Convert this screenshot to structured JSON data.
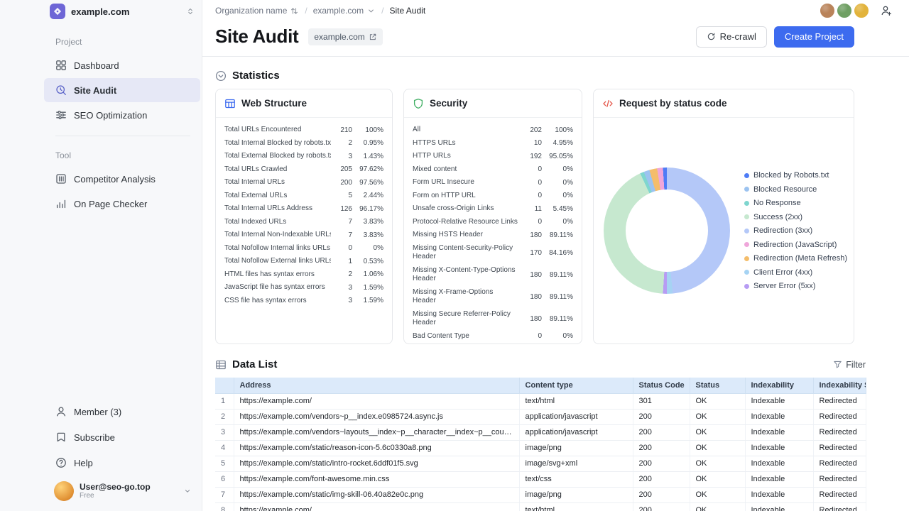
{
  "colors": {
    "primary": "#3d6bef",
    "logo_purple": "#6e66d6",
    "sidebar_bg": "#f7f8fa",
    "active_item_bg": "#e6e8f6",
    "active_icon": "#5a63c8",
    "table_header_bg": "#dceafa",
    "web_structure_icon": "#3d6bef",
    "security_icon": "#3fae62",
    "code_icon": "#e4574a"
  },
  "sidebar": {
    "workspace_name": "example.com",
    "sections": [
      {
        "label": "Project",
        "items": [
          {
            "label": "Dashboard",
            "icon": "dashboard-icon",
            "active": false
          },
          {
            "label": "Site Audit",
            "icon": "site-audit-icon",
            "active": true
          },
          {
            "label": "SEO Optimization",
            "icon": "seo-optimization-icon",
            "active": false
          }
        ]
      },
      {
        "label": "Tool",
        "items": [
          {
            "label": "Competitor Analysis",
            "icon": "competitor-analysis-icon",
            "active": false
          },
          {
            "label": "On Page Checker",
            "icon": "on-page-checker-icon",
            "active": false
          }
        ]
      }
    ],
    "footer_items": [
      {
        "label": "Member (3)",
        "icon": "member-icon"
      },
      {
        "label": "Subscribe",
        "icon": "subscribe-icon"
      },
      {
        "label": "Help",
        "icon": "help-icon"
      }
    ],
    "user": {
      "name": "User@seo-go.top",
      "plan": "Free"
    }
  },
  "topbar": {
    "separator": "/",
    "breadcrumbs": [
      "Organization name",
      "example.com",
      "Site Audit"
    ],
    "avatar_colors": [
      "#b9835a",
      "#6f9f63",
      "#e2b33c"
    ]
  },
  "page_header": {
    "title": "Site Audit",
    "domain_badge": "example.com",
    "recrawl_label": "Re-crawl",
    "create_project_label": "Create Project"
  },
  "statistics": {
    "section_title": "Statistics",
    "web_structure": {
      "title": "Web Structure",
      "rows": [
        {
          "label": "Total URLs Encountered",
          "value": "210",
          "percent": "100%"
        },
        {
          "label": "Total Internal Blocked by robots.txt",
          "value": "2",
          "percent": "0.95%"
        },
        {
          "label": "Total External Blocked by robots.txt",
          "value": "3",
          "percent": "1.43%"
        },
        {
          "label": "Total URLs Crawled",
          "value": "205",
          "percent": "97.62%"
        },
        {
          "label": "Total Internal URLs",
          "value": "200",
          "percent": "97.56%"
        },
        {
          "label": "Total External URLs",
          "value": "5",
          "percent": "2.44%"
        },
        {
          "label": "Total Internal URLs Address",
          "value": "126",
          "percent": "96.17%"
        },
        {
          "label": "Total Indexed URLs",
          "value": "7",
          "percent": "3.83%"
        },
        {
          "label": "Total Internal Non-Indexable URLs",
          "value": "7",
          "percent": "3.83%"
        },
        {
          "label": "Total Nofollow Internal links URLs",
          "value": "0",
          "percent": "0%"
        },
        {
          "label": "Total Nofollow External links URLs",
          "value": "1",
          "percent": "0.53%"
        },
        {
          "label": "HTML files has syntax errors",
          "value": "2",
          "percent": "1.06%"
        },
        {
          "label": "JavaScript file has syntax errors",
          "value": "3",
          "percent": "1.59%"
        },
        {
          "label": "CSS file has syntax errors",
          "value": "3",
          "percent": "1.59%"
        }
      ]
    },
    "security": {
      "title": "Security",
      "rows": [
        {
          "label": "All",
          "value": "202",
          "percent": "100%"
        },
        {
          "label": "HTTPS URLs",
          "value": "10",
          "percent": "4.95%"
        },
        {
          "label": "HTTP URLs",
          "value": "192",
          "percent": "95.05%"
        },
        {
          "label": "Mixed content",
          "value": "0",
          "percent": "0%"
        },
        {
          "label": "Form URL Insecure",
          "value": "0",
          "percent": "0%"
        },
        {
          "label": "Form on HTTP URL",
          "value": "0",
          "percent": "0%"
        },
        {
          "label": "Unsafe cross-Origin Links",
          "value": "11",
          "percent": "5.45%"
        },
        {
          "label": "Protocol-Relative Resource Links",
          "value": "0",
          "percent": "0%"
        },
        {
          "label": "Missing HSTS Header",
          "value": "180",
          "percent": "89.11%"
        },
        {
          "label": "Missing Content-Security-Policy Header",
          "value": "170",
          "percent": "84.16%"
        },
        {
          "label": "Missing X-Content-Type-Options Header",
          "value": "180",
          "percent": "89.11%"
        },
        {
          "label": "Missing X-Frame-Options Header",
          "value": "180",
          "percent": "89.11%"
        },
        {
          "label": "Missing Secure Referrer-Policy Header",
          "value": "180",
          "percent": "89.11%"
        },
        {
          "label": "Bad Content Type",
          "value": "0",
          "percent": "0%"
        }
      ]
    },
    "status_codes": {
      "title": "Request by status code"
    }
  },
  "chart_data": {
    "type": "pie",
    "title": "Request by status code",
    "donut": true,
    "legend_position": "right",
    "series": [
      {
        "name": "Blocked by Robots.txt",
        "value": 2,
        "color": "#4e7cf6"
      },
      {
        "name": "Blocked Resource",
        "value": 3,
        "color": "#9cc3f0"
      },
      {
        "name": "No Response",
        "value": 2,
        "color": "#7fd6cf"
      },
      {
        "name": "Success (2xx)",
        "value": 85,
        "color": "#c6e8cf"
      },
      {
        "name": "Redirection (3xx)",
        "value": 98,
        "color": "#b4c8f8"
      },
      {
        "name": "Redirection (JavaScript)",
        "value": 3,
        "color": "#efa6da"
      },
      {
        "name": "Redirection (Meta Refresh)",
        "value": 4,
        "color": "#f4bd6b"
      },
      {
        "name": "Client Error (4xx)",
        "value": 3,
        "color": "#a6d3f3"
      },
      {
        "name": "Server Error (5xx)",
        "value": 2,
        "color": "#b79cf3"
      }
    ],
    "draw_order": [
      4,
      7,
      8,
      3,
      2,
      1,
      6,
      5,
      0
    ]
  },
  "data_list": {
    "section_title": "Data List",
    "filter_label": "Filter",
    "columns": [
      "Address",
      "Content type",
      "Status Code",
      "Status",
      "Indexability",
      "Indexability Status"
    ],
    "rows": [
      {
        "num": "1",
        "address": "https://example.com/",
        "content_type": "text/html",
        "status_code": "301",
        "status": "OK",
        "indexability": "Indexable",
        "indexability_status": "Redirected"
      },
      {
        "num": "2",
        "address": "https://example.com/vendors~p__index.e0985724.async.js",
        "content_type": "application/javascript",
        "status_code": "200",
        "status": "OK",
        "indexability": "Indexable",
        "indexability_status": "Redirected"
      },
      {
        "num": "3",
        "address": "https://example.com/vendors~layouts__index~p__character__index~p__course__courseId__index",
        "content_type": "application/javascript",
        "status_code": "200",
        "status": "OK",
        "indexability": "Indexable",
        "indexability_status": "Redirected"
      },
      {
        "num": "4",
        "address": "https://example.com/static/reason-icon-5.6c0330a8.png",
        "content_type": "image/png",
        "status_code": "200",
        "status": "OK",
        "indexability": "Indexable",
        "indexability_status": "Redirected"
      },
      {
        "num": "5",
        "address": "https://example.com/static/intro-rocket.6ddf01f5.svg",
        "content_type": "image/svg+xml",
        "status_code": "200",
        "status": "OK",
        "indexability": "Indexable",
        "indexability_status": "Redirected"
      },
      {
        "num": "6",
        "address": "https://example.com/font-awesome.min.css",
        "content_type": "text/css",
        "status_code": "200",
        "status": "OK",
        "indexability": "Indexable",
        "indexability_status": "Redirected"
      },
      {
        "num": "7",
        "address": "https://example.com/static/img-skill-06.40a82e0c.png",
        "content_type": "image/png",
        "status_code": "200",
        "status": "OK",
        "indexability": "Indexable",
        "indexability_status": "Redirected"
      },
      {
        "num": "8",
        "address": "https://example.com/",
        "content_type": "text/html",
        "status_code": "200",
        "status": "OK",
        "indexability": "Indexable",
        "indexability_status": "Redirected"
      }
    ]
  }
}
